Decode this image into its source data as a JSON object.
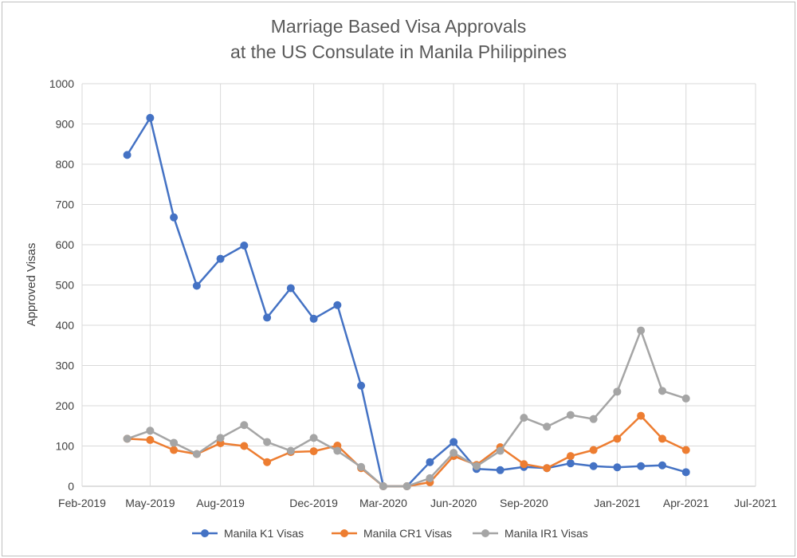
{
  "chart_data": {
    "type": "line",
    "title": [
      "Marriage Based Visa Approvals",
      "at the US Consulate in Manila Philippines"
    ],
    "ylabel": "Approved Visas",
    "xlabel": "",
    "ylim": [
      0,
      1000
    ],
    "yticks": [
      "0",
      "100",
      "200",
      "300",
      "400",
      "500",
      "600",
      "700",
      "800",
      "900",
      "1000"
    ],
    "xlim": [
      "2019-02-01",
      "2021-07-01"
    ],
    "xticks": [
      {
        "date": "2019-02-01",
        "label": "Feb-2019"
      },
      {
        "date": "2019-05-01",
        "label": "May-2019"
      },
      {
        "date": "2019-08-01",
        "label": "Aug-2019"
      },
      {
        "date": "2019-12-01",
        "label": "Dec-2019"
      },
      {
        "date": "2020-03-01",
        "label": "Mar-2020"
      },
      {
        "date": "2020-06-01",
        "label": "Jun-2020"
      },
      {
        "date": "2020-09-01",
        "label": "Sep-2020"
      },
      {
        "date": "2021-01-01",
        "label": "Jan-2021"
      },
      {
        "date": "2021-04-01",
        "label": "Apr-2021"
      },
      {
        "date": "2021-07-01",
        "label": "Jul-2021"
      }
    ],
    "grid": true,
    "legend_position": "bottom",
    "x": [
      "2019-04-01",
      "2019-05-01",
      "2019-06-01",
      "2019-07-01",
      "2019-08-01",
      "2019-09-01",
      "2019-10-01",
      "2019-11-01",
      "2019-12-01",
      "2020-01-01",
      "2020-02-01",
      "2020-03-01",
      "2020-04-01",
      "2020-05-01",
      "2020-06-01",
      "2020-07-01",
      "2020-08-01",
      "2020-09-01",
      "2020-10-01",
      "2020-11-01",
      "2020-12-01",
      "2021-01-01",
      "2021-02-01",
      "2021-03-01",
      "2021-04-01",
      "2021-05-01"
    ],
    "series": [
      {
        "name": "Manila K1 Visas",
        "color": "#4472c4",
        "values": [
          823,
          915,
          668,
          498,
          565,
          598,
          419,
          492,
          416,
          450,
          250,
          0,
          0,
          60,
          110,
          43,
          40,
          48,
          45,
          57,
          50,
          47,
          50,
          52,
          35,
          null
        ]
      },
      {
        "name": "Manila CR1 Visas",
        "color": "#ed7d31",
        "values": [
          118,
          115,
          90,
          80,
          107,
          100,
          60,
          85,
          87,
          101,
          45,
          0,
          0,
          10,
          75,
          53,
          97,
          55,
          45,
          75,
          90,
          118,
          175,
          118,
          90,
          null
        ]
      },
      {
        "name": "Manila IR1 Visas",
        "color": "#a5a5a5",
        "values": [
          118,
          138,
          108,
          80,
          120,
          152,
          110,
          88,
          120,
          88,
          48,
          0,
          0,
          20,
          83,
          50,
          88,
          170,
          148,
          177,
          167,
          235,
          387,
          237,
          218,
          null
        ]
      }
    ]
  }
}
